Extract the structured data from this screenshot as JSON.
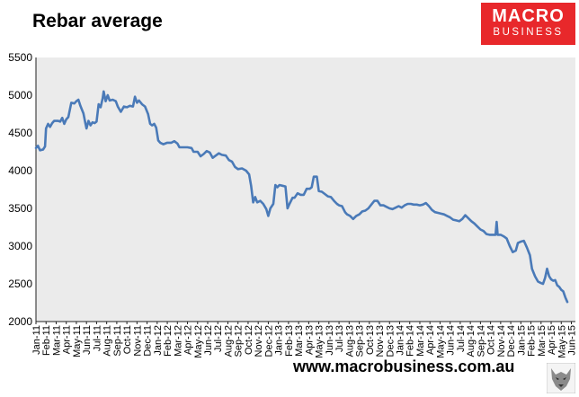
{
  "chart_data": {
    "type": "line",
    "title": "Rebar average",
    "xlabel": "",
    "ylabel": "",
    "ylim": [
      2000,
      5500
    ],
    "yticks": [
      2000,
      2500,
      3000,
      3500,
      4000,
      4500,
      5000,
      5500
    ],
    "grid": false,
    "legend": "none",
    "line_color": "#4a7ab8",
    "plot_bg": "#ebebeb",
    "categories": [
      "Jan-11",
      "Feb-11",
      "Mar-11",
      "Apr-11",
      "May-11",
      "Jun-11",
      "Jul-11",
      "Aug-11",
      "Sep-11",
      "Oct-11",
      "Nov-11",
      "Dec-11",
      "Jan-12",
      "Feb-12",
      "Mar-12",
      "Apr-12",
      "May-12",
      "Jun-12",
      "Jul-12",
      "Aug-12",
      "Sep-12",
      "Oct-12",
      "Nov-12",
      "Dec-12",
      "Jan-13",
      "Feb-13",
      "Mar-13",
      "Apr-13",
      "May-13",
      "Jun-13",
      "Jul-13",
      "Aug-13",
      "Sep-13",
      "Oct-13",
      "Nov-13",
      "Dec-13",
      "Jan-14",
      "Feb-14",
      "Mar-14",
      "Apr-14",
      "May-14",
      "Jun-14",
      "Jul-14",
      "Aug-14",
      "Sep-14",
      "Oct-14",
      "Nov-14",
      "Dec-14",
      "Jan-15",
      "Feb-15",
      "Mar-15",
      "Apr-15",
      "May-15",
      "Jun-15"
    ],
    "x_end": 53.4,
    "points": [
      [
        0.0,
        4300
      ],
      [
        0.2,
        4330
      ],
      [
        0.4,
        4270
      ],
      [
        0.7,
        4280
      ],
      [
        0.9,
        4320
      ],
      [
        1.0,
        4560
      ],
      [
        1.2,
        4620
      ],
      [
        1.4,
        4580
      ],
      [
        1.6,
        4630
      ],
      [
        1.8,
        4660
      ],
      [
        2.2,
        4660
      ],
      [
        2.4,
        4650
      ],
      [
        2.6,
        4700
      ],
      [
        2.8,
        4620
      ],
      [
        3.0,
        4680
      ],
      [
        3.2,
        4710
      ],
      [
        3.5,
        4900
      ],
      [
        3.8,
        4890
      ],
      [
        4.0,
        4920
      ],
      [
        4.2,
        4940
      ],
      [
        4.4,
        4860
      ],
      [
        4.7,
        4760
      ],
      [
        4.9,
        4620
      ],
      [
        5.0,
        4560
      ],
      [
        5.2,
        4660
      ],
      [
        5.4,
        4600
      ],
      [
        5.6,
        4640
      ],
      [
        5.8,
        4630
      ],
      [
        6.0,
        4650
      ],
      [
        6.2,
        4880
      ],
      [
        6.4,
        4840
      ],
      [
        6.6,
        4960
      ],
      [
        6.7,
        5050
      ],
      [
        6.9,
        4920
      ],
      [
        7.1,
        5000
      ],
      [
        7.3,
        4930
      ],
      [
        7.6,
        4940
      ],
      [
        7.9,
        4920
      ],
      [
        8.1,
        4850
      ],
      [
        8.4,
        4780
      ],
      [
        8.7,
        4850
      ],
      [
        9.0,
        4840
      ],
      [
        9.3,
        4860
      ],
      [
        9.6,
        4850
      ],
      [
        9.8,
        4980
      ],
      [
        10.0,
        4900
      ],
      [
        10.2,
        4930
      ],
      [
        10.5,
        4880
      ],
      [
        10.8,
        4850
      ],
      [
        11.1,
        4750
      ],
      [
        11.3,
        4620
      ],
      [
        11.5,
        4600
      ],
      [
        11.7,
        4620
      ],
      [
        11.9,
        4570
      ],
      [
        12.1,
        4400
      ],
      [
        12.3,
        4370
      ],
      [
        12.6,
        4350
      ],
      [
        13.0,
        4370
      ],
      [
        13.4,
        4370
      ],
      [
        13.7,
        4390
      ],
      [
        14.0,
        4360
      ],
      [
        14.2,
        4310
      ],
      [
        14.6,
        4310
      ],
      [
        15.0,
        4310
      ],
      [
        15.4,
        4300
      ],
      [
        15.6,
        4250
      ],
      [
        16.0,
        4250
      ],
      [
        16.3,
        4190
      ],
      [
        16.6,
        4220
      ],
      [
        16.9,
        4260
      ],
      [
        17.2,
        4240
      ],
      [
        17.5,
        4170
      ],
      [
        17.8,
        4200
      ],
      [
        18.1,
        4230
      ],
      [
        18.4,
        4210
      ],
      [
        18.8,
        4200
      ],
      [
        19.1,
        4140
      ],
      [
        19.4,
        4120
      ],
      [
        19.7,
        4050
      ],
      [
        20.0,
        4020
      ],
      [
        20.4,
        4030
      ],
      [
        20.8,
        4000
      ],
      [
        21.1,
        3950
      ],
      [
        21.3,
        3800
      ],
      [
        21.5,
        3580
      ],
      [
        21.7,
        3650
      ],
      [
        21.9,
        3580
      ],
      [
        22.2,
        3600
      ],
      [
        22.5,
        3560
      ],
      [
        22.8,
        3490
      ],
      [
        23.0,
        3400
      ],
      [
        23.2,
        3500
      ],
      [
        23.5,
        3560
      ],
      [
        23.7,
        3810
      ],
      [
        23.9,
        3780
      ],
      [
        24.1,
        3810
      ],
      [
        24.4,
        3800
      ],
      [
        24.7,
        3790
      ],
      [
        24.9,
        3500
      ],
      [
        25.1,
        3560
      ],
      [
        25.4,
        3640
      ],
      [
        25.6,
        3640
      ],
      [
        25.9,
        3700
      ],
      [
        26.2,
        3680
      ],
      [
        26.5,
        3680
      ],
      [
        26.8,
        3760
      ],
      [
        27.1,
        3760
      ],
      [
        27.3,
        3780
      ],
      [
        27.5,
        3920
      ],
      [
        27.8,
        3920
      ],
      [
        28.0,
        3730
      ],
      [
        28.3,
        3720
      ],
      [
        28.6,
        3690
      ],
      [
        28.9,
        3660
      ],
      [
        29.2,
        3650
      ],
      [
        29.5,
        3600
      ],
      [
        29.8,
        3560
      ],
      [
        30.0,
        3540
      ],
      [
        30.3,
        3530
      ],
      [
        30.6,
        3450
      ],
      [
        30.8,
        3420
      ],
      [
        31.1,
        3400
      ],
      [
        31.4,
        3360
      ],
      [
        31.7,
        3400
      ],
      [
        32.0,
        3420
      ],
      [
        32.3,
        3460
      ],
      [
        32.6,
        3470
      ],
      [
        32.9,
        3500
      ],
      [
        33.2,
        3550
      ],
      [
        33.5,
        3600
      ],
      [
        33.8,
        3600
      ],
      [
        34.1,
        3540
      ],
      [
        34.4,
        3540
      ],
      [
        34.7,
        3520
      ],
      [
        35.0,
        3500
      ],
      [
        35.3,
        3490
      ],
      [
        35.6,
        3510
      ],
      [
        35.9,
        3530
      ],
      [
        36.2,
        3510
      ],
      [
        36.5,
        3540
      ],
      [
        36.8,
        3560
      ],
      [
        37.1,
        3560
      ],
      [
        37.4,
        3550
      ],
      [
        37.7,
        3550
      ],
      [
        38.0,
        3540
      ],
      [
        38.3,
        3550
      ],
      [
        38.6,
        3570
      ],
      [
        38.9,
        3530
      ],
      [
        39.2,
        3480
      ],
      [
        39.5,
        3450
      ],
      [
        39.8,
        3440
      ],
      [
        40.1,
        3430
      ],
      [
        40.4,
        3420
      ],
      [
        40.7,
        3400
      ],
      [
        41.0,
        3380
      ],
      [
        41.3,
        3350
      ],
      [
        41.6,
        3340
      ],
      [
        41.9,
        3330
      ],
      [
        42.2,
        3360
      ],
      [
        42.5,
        3410
      ],
      [
        42.8,
        3370
      ],
      [
        43.1,
        3330
      ],
      [
        43.4,
        3300
      ],
      [
        43.7,
        3260
      ],
      [
        44.0,
        3220
      ],
      [
        44.3,
        3200
      ],
      [
        44.6,
        3160
      ],
      [
        44.9,
        3150
      ],
      [
        45.2,
        3150
      ],
      [
        45.5,
        3150
      ],
      [
        45.6,
        3320
      ],
      [
        45.7,
        3150
      ],
      [
        46.0,
        3150
      ],
      [
        46.3,
        3130
      ],
      [
        46.6,
        3100
      ],
      [
        46.9,
        3000
      ],
      [
        47.2,
        2920
      ],
      [
        47.5,
        2940
      ],
      [
        47.7,
        3040
      ],
      [
        48.0,
        3060
      ],
      [
        48.3,
        3070
      ],
      [
        48.6,
        2980
      ],
      [
        48.9,
        2880
      ],
      [
        49.1,
        2700
      ],
      [
        49.4,
        2600
      ],
      [
        49.7,
        2530
      ],
      [
        50.0,
        2510
      ],
      [
        50.2,
        2500
      ],
      [
        50.4,
        2580
      ],
      [
        50.6,
        2700
      ],
      [
        50.8,
        2600
      ],
      [
        51.0,
        2560
      ],
      [
        51.2,
        2540
      ],
      [
        51.4,
        2550
      ],
      [
        51.6,
        2480
      ],
      [
        51.8,
        2460
      ],
      [
        52.0,
        2420
      ],
      [
        52.2,
        2400
      ],
      [
        52.4,
        2320
      ],
      [
        52.6,
        2260
      ]
    ]
  },
  "logo": {
    "line1": "MACRO",
    "line2": "BUSINESS",
    "color": "#e8282b"
  },
  "footer": {
    "url": "www.macrobusiness.com.au"
  }
}
